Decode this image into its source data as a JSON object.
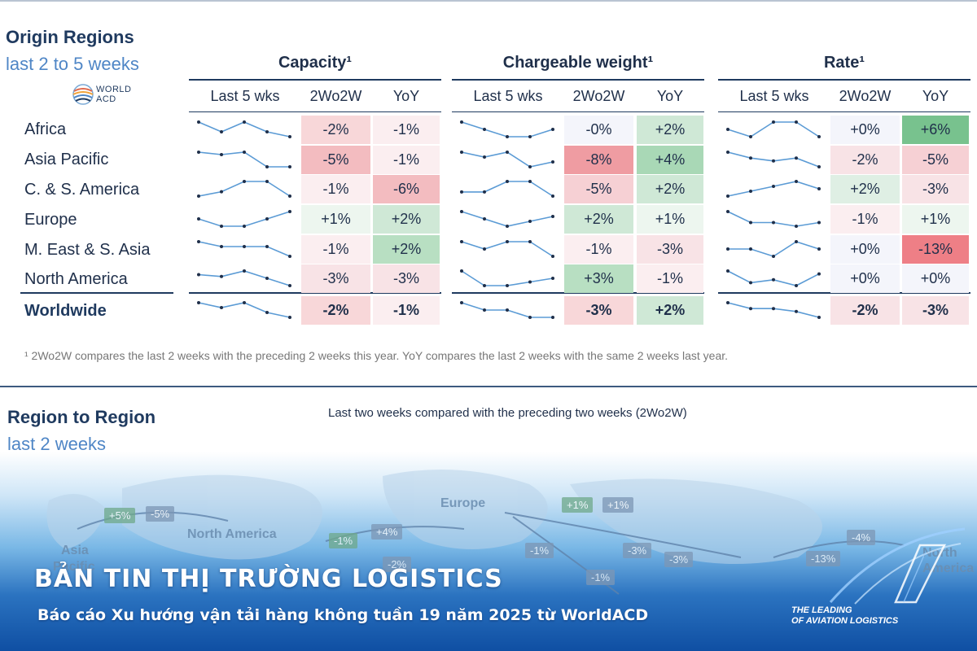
{
  "origin": {
    "title": "Origin Regions",
    "subtitle": "last 2 to 5 weeks",
    "logo_text": "WORLD ACD",
    "groups": [
      {
        "key": "capacity",
        "title": "Capacity¹",
        "cols": [
          "Last 5 wks",
          "2Wo2W",
          "YoY"
        ]
      },
      {
        "key": "chargeable",
        "title": "Chargeable weight¹",
        "cols": [
          "Last 5 wks",
          "2Wo2W",
          "YoY"
        ]
      },
      {
        "key": "rate",
        "title": "Rate¹",
        "cols": [
          "Last 5 wks",
          "2Wo2W",
          "YoY"
        ]
      }
    ],
    "footnote": "¹ 2Wo2W compares the last 2 weeks with the preceding 2 weeks this year. YoY compares the last 2 weeks with the same 2 weeks last year."
  },
  "chart_data": {
    "type": "table",
    "title": "Origin Regions — last 2 to 5 weeks",
    "metrics": [
      "Capacity",
      "Chargeable weight",
      "Rate"
    ],
    "rows": [
      {
        "region": "Africa",
        "capacity": {
          "trend": [
            2,
            0,
            2,
            0,
            -1
          ],
          "w2w": "-2%",
          "yoy": "-1%",
          "w2w_color": "#f8d7d9",
          "yoy_color": "#fbeef0"
        },
        "chargeable": {
          "trend": [
            1,
            0.5,
            0,
            0,
            0.5
          ],
          "w2w": "-0%",
          "yoy": "+2%",
          "w2w_color": "#f4f5fb",
          "yoy_color": "#cfe8d6"
        },
        "rate": {
          "trend": [
            1,
            0,
            2,
            2,
            0
          ],
          "w2w": "+0%",
          "yoy": "+6%",
          "w2w_color": "#f4f5fb",
          "yoy_color": "#78c28e"
        }
      },
      {
        "region": "Asia Pacific",
        "capacity": {
          "trend": [
            2,
            1.5,
            2,
            -1,
            -1
          ],
          "w2w": "-5%",
          "yoy": "-1%",
          "w2w_color": "#f3bcc0",
          "yoy_color": "#fbeef0"
        },
        "chargeable": {
          "trend": [
            1,
            0,
            1,
            -2,
            -1
          ],
          "w2w": "-8%",
          "yoy": "+4%",
          "w2w_color": "#ef9ca2",
          "yoy_color": "#a9d8b6"
        },
        "rate": {
          "trend": [
            4,
            2,
            1,
            2,
            -1
          ],
          "w2w": "-2%",
          "yoy": "-5%",
          "w2w_color": "#f8e3e6",
          "yoy_color": "#f6d0d4"
        }
      },
      {
        "region": "C. & S. America",
        "capacity": {
          "trend": [
            0,
            3,
            10,
            10,
            0
          ],
          "w2w": "-1%",
          "yoy": "-6%",
          "w2w_color": "#fbeef0",
          "yoy_color": "#f3bcc0"
        },
        "chargeable": {
          "trend": [
            0,
            0,
            5,
            5,
            -2
          ],
          "w2w": "-5%",
          "yoy": "+2%",
          "w2w_color": "#f6d0d4",
          "yoy_color": "#cfe8d6"
        },
        "rate": {
          "trend": [
            0,
            2,
            4,
            6,
            3
          ],
          "w2w": "+2%",
          "yoy": "-3%",
          "w2w_color": "#dfefe4",
          "yoy_color": "#f8e3e6"
        }
      },
      {
        "region": "Europe",
        "capacity": {
          "trend": [
            1,
            0.5,
            0.5,
            1,
            1.5
          ],
          "w2w": "+1%",
          "yoy": "+2%",
          "w2w_color": "#edf6ef",
          "yoy_color": "#cfe8d6"
        },
        "chargeable": {
          "trend": [
            3,
            1.5,
            0,
            1,
            2
          ],
          "w2w": "+2%",
          "yoy": "+1%",
          "w2w_color": "#cfe8d6",
          "yoy_color": "#edf6ef"
        },
        "rate": {
          "trend": [
            3,
            1.5,
            1.5,
            1,
            1.5
          ],
          "w2w": "-1%",
          "yoy": "+1%",
          "w2w_color": "#fbeef0",
          "yoy_color": "#edf6ef"
        }
      },
      {
        "region": "M. East & S. Asia",
        "capacity": {
          "trend": [
            2,
            1,
            1,
            1,
            -1
          ],
          "w2w": "-1%",
          "yoy": "+2%",
          "w2w_color": "#fbeef0",
          "yoy_color": "#b8dfc2"
        },
        "chargeable": {
          "trend": [
            1,
            0,
            1,
            1,
            -1
          ],
          "w2w": "-1%",
          "yoy": "-3%",
          "w2w_color": "#fbeef0",
          "yoy_color": "#f8e3e6"
        },
        "rate": {
          "trend": [
            1,
            1,
            0,
            2,
            1
          ],
          "w2w": "+0%",
          "yoy": "-13%",
          "w2w_color": "#f4f5fb",
          "yoy_color": "#ee7f86"
        }
      },
      {
        "region": "North America",
        "capacity": {
          "trend": [
            2,
            1.5,
            3,
            1,
            -1
          ],
          "w2w": "-3%",
          "yoy": "-3%",
          "w2w_color": "#f8e3e6",
          "yoy_color": "#f8e3e6"
        },
        "chargeable": {
          "trend": [
            2,
            0,
            0,
            0.5,
            1
          ],
          "w2w": "+3%",
          "yoy": "-1%",
          "w2w_color": "#b8dfc2",
          "yoy_color": "#fbeef0"
        },
        "rate": {
          "trend": [
            5,
            1,
            2,
            0,
            4
          ],
          "w2w": "+0%",
          "yoy": "+0%",
          "w2w_color": "#f4f5fb",
          "yoy_color": "#f4f5fb"
        }
      },
      {
        "region": "Worldwide",
        "bold": true,
        "capacity": {
          "trend": [
            2,
            1,
            2,
            0,
            -1
          ],
          "w2w": "-2%",
          "yoy": "-1%",
          "w2w_color": "#f8d7d9",
          "yoy_color": "#fbeef0"
        },
        "chargeable": {
          "trend": [
            2,
            1,
            1,
            0,
            0
          ],
          "w2w": "-3%",
          "yoy": "+2%",
          "w2w_color": "#f8d7d9",
          "yoy_color": "#cfe8d6"
        },
        "rate": {
          "trend": [
            4,
            2,
            2,
            1,
            -1
          ],
          "w2w": "-2%",
          "yoy": "-3%",
          "w2w_color": "#f8e3e6",
          "yoy_color": "#f8e3e6"
        }
      }
    ]
  },
  "region_to_region": {
    "title": "Region to Region",
    "subtitle": "last 2 weeks",
    "note": "Last two weeks compared with the preceding two weeks (2Wo2W)",
    "labels": [
      "Asia",
      "Pacific",
      "North America",
      "Europe",
      "North",
      "America"
    ],
    "badges": [
      "+5%",
      "-5%",
      "-1%",
      "+4%",
      "+1%",
      "+1%",
      "-1%",
      "-3%",
      "-3%",
      "-4%",
      "-13%",
      "-2%",
      "-1%"
    ]
  },
  "banner": {
    "title": "BẢN TIN THỊ TRƯỜNG LOGISTICS",
    "subtitle": "Báo cáo Xu hướng vận tải hàng không tuần 19 năm 2025 từ WorldACD",
    "tagline_1": "THE LEADING",
    "tagline_2": "OF AVIATION LOGISTICS"
  },
  "colors": {
    "navy": "#1f3a5f",
    "sparkline": "#5b9bd5",
    "accent_blue": "#4f86c6"
  }
}
